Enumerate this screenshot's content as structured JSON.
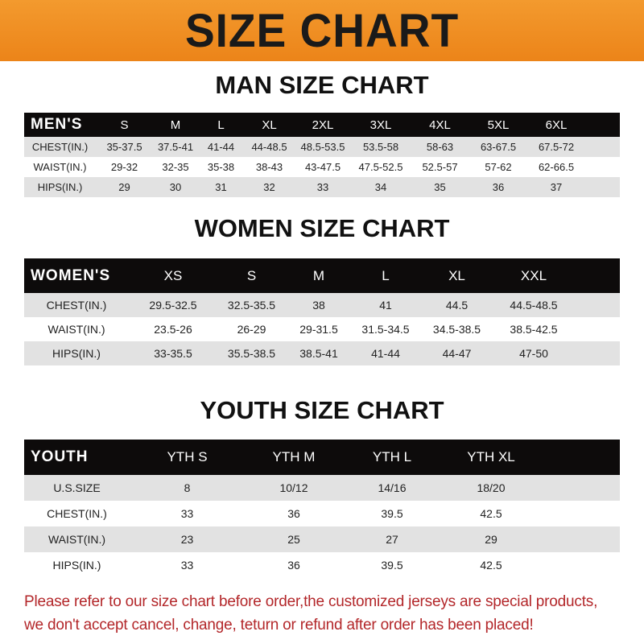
{
  "banner": {
    "title": "SIZE CHART",
    "color": "#ee8a20"
  },
  "men": {
    "title": "MAN SIZE CHART",
    "header": [
      "MEN'S",
      "S",
      "M",
      "L",
      "XL",
      "2XL",
      "3XL",
      "4XL",
      "5XL",
      "6XL"
    ],
    "rows": [
      [
        "CHEST(IN.)",
        "35-37.5",
        "37.5-41",
        "41-44",
        "44-48.5",
        "48.5-53.5",
        "53.5-58",
        "58-63",
        "63-67.5",
        "67.5-72"
      ],
      [
        "WAIST(IN.)",
        "29-32",
        "32-35",
        "35-38",
        "38-43",
        "43-47.5",
        "47.5-52.5",
        "52.5-57",
        "57-62",
        "62-66.5"
      ],
      [
        "HIPS(IN.)",
        "29",
        "30",
        "31",
        "32",
        "33",
        "34",
        "35",
        "36",
        "37"
      ]
    ]
  },
  "women": {
    "title": "WOMEN SIZE CHART",
    "header": [
      "WOMEN'S",
      "XS",
      "S",
      "M",
      "L",
      "XL",
      "XXL"
    ],
    "rows": [
      [
        "CHEST(IN.)",
        "29.5-32.5",
        "32.5-35.5",
        "38",
        "41",
        "44.5",
        "44.5-48.5"
      ],
      [
        "WAIST(IN.)",
        "23.5-26",
        "26-29",
        "29-31.5",
        "31.5-34.5",
        "34.5-38.5",
        "38.5-42.5"
      ],
      [
        "HIPS(IN.)",
        "33-35.5",
        "35.5-38.5",
        "38.5-41",
        "41-44",
        "44-47",
        "47-50"
      ]
    ]
  },
  "youth": {
    "title": "YOUTH SIZE CHART",
    "header": [
      "YOUTH",
      "YTH S",
      "YTH M",
      "YTH L",
      "YTH XL"
    ],
    "rows": [
      [
        "U.S.SIZE",
        "8",
        "10/12",
        "14/16",
        "18/20"
      ],
      [
        "CHEST(IN.)",
        "33",
        "36",
        "39.5",
        "42.5"
      ],
      [
        "WAIST(IN.)",
        "23",
        "25",
        "27",
        "29"
      ],
      [
        "HIPS(IN.)",
        "33",
        "36",
        "39.5",
        "42.5"
      ]
    ]
  },
  "note": {
    "line1": "Please refer to our size chart before order,the customized jerseys are special products,",
    "line2": "we don't accept cancel, change, teturn or refund after order has been placed!",
    "color": "#b3272a"
  }
}
